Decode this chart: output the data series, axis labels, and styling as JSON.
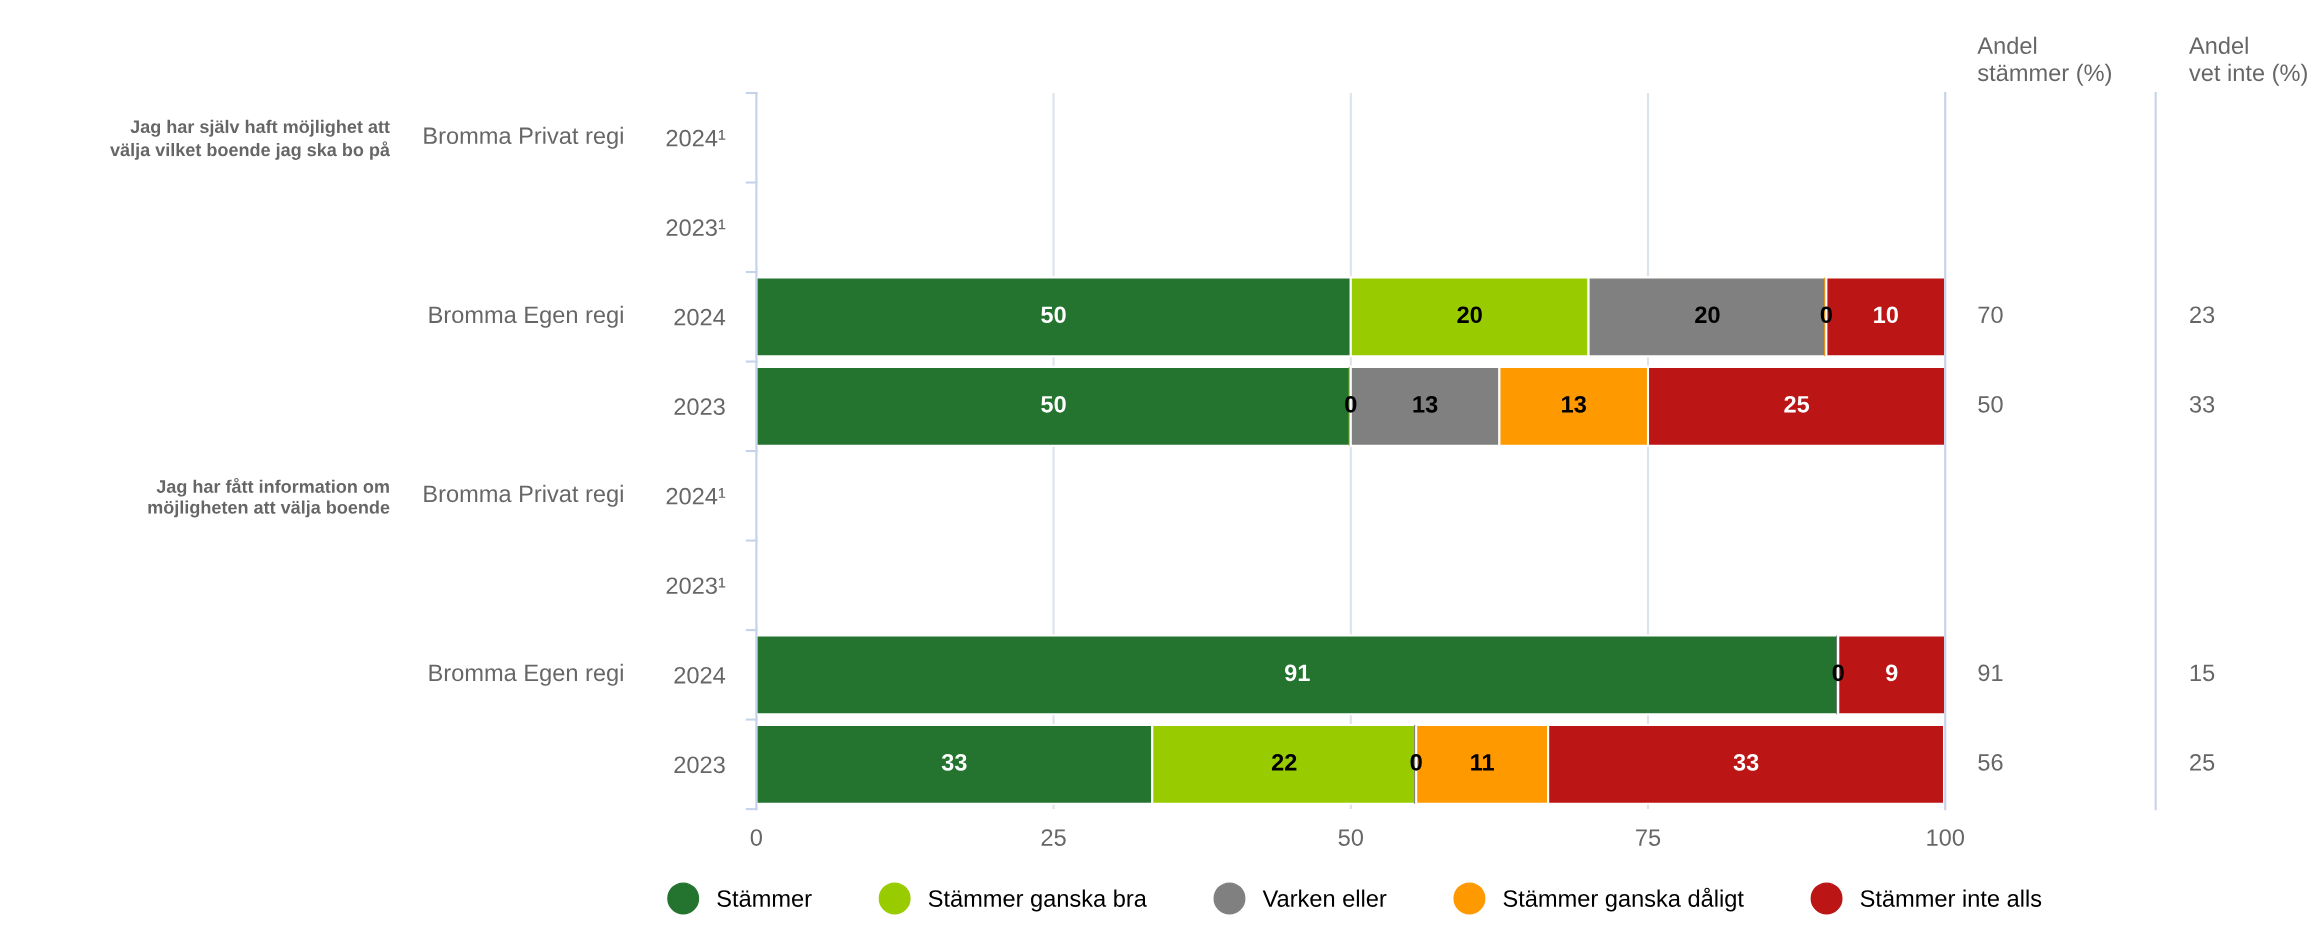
{
  "chart_data": {
    "type": "bar",
    "orientation": "horizontal",
    "stacked": true,
    "categories": [
      "2024¹",
      "2023¹",
      "2024",
      "2023",
      "2024¹",
      "2023¹",
      "2024",
      "2023"
    ],
    "series": [
      {
        "name": "Stämmer",
        "color": "#247430",
        "values": [
          null,
          null,
          50,
          50,
          null,
          null,
          91,
          33.3
        ],
        "value_labels": [
          null,
          null,
          "50",
          "50",
          null,
          null,
          "91",
          "33"
        ]
      },
      {
        "name": "Stämmer ganska bra",
        "color": "#99cc00",
        "values": [
          null,
          null,
          20,
          0,
          null,
          null,
          null,
          22.2
        ],
        "value_labels": [
          null,
          null,
          "20",
          "0",
          null,
          null,
          null,
          "22"
        ]
      },
      {
        "name": "Varken eller",
        "color": "#808080",
        "values": [
          null,
          null,
          20,
          12.5,
          null,
          null,
          0,
          0
        ],
        "value_labels": [
          null,
          null,
          "20",
          "13",
          null,
          null,
          "0",
          "0"
        ]
      },
      {
        "name": "Stämmer ganska dåligt",
        "color": "#ff9900",
        "values": [
          null,
          null,
          0,
          12.5,
          null,
          null,
          null,
          11.1
        ],
        "value_labels": [
          null,
          null,
          "0",
          "13",
          null,
          null,
          null,
          "11"
        ]
      },
      {
        "name": "Stämmer inte alls",
        "color": "#bb1515",
        "values": [
          null,
          null,
          10,
          25,
          null,
          null,
          9,
          33.3
        ],
        "value_labels": [
          null,
          null,
          "10",
          "25",
          null,
          null,
          "9",
          "33"
        ]
      }
    ],
    "xlim": [
      0,
      100
    ],
    "xticks": [
      0,
      25,
      50,
      75,
      100
    ],
    "grid": "x",
    "legend": "bottom",
    "annotations": [
      "Jag har själv haft möjlighet att\nvälja vilket boende jag ska bo på",
      "Jag har fått information om\nmöjligheten att välja boende",
      "Bromma Privat regi",
      "Bromma Egen regi",
      "Bromma Privat regi",
      "Bromma Egen regi",
      "Andel\nstämmer (%)",
      "Andel\nvet inte (%)",
      "70",
      "50",
      "91",
      "56",
      "23",
      "33",
      "15",
      "25"
    ]
  }
}
